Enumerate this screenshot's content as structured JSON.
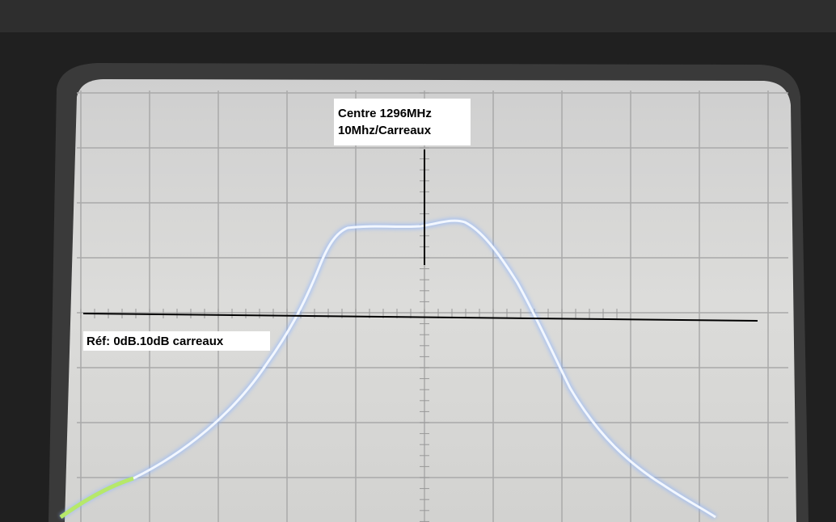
{
  "annotations": {
    "center": "Centre 1296MHz",
    "span": "10Mhz/Carreaux",
    "reference": "Réf: 0dB.10dB carreaux"
  }
}
